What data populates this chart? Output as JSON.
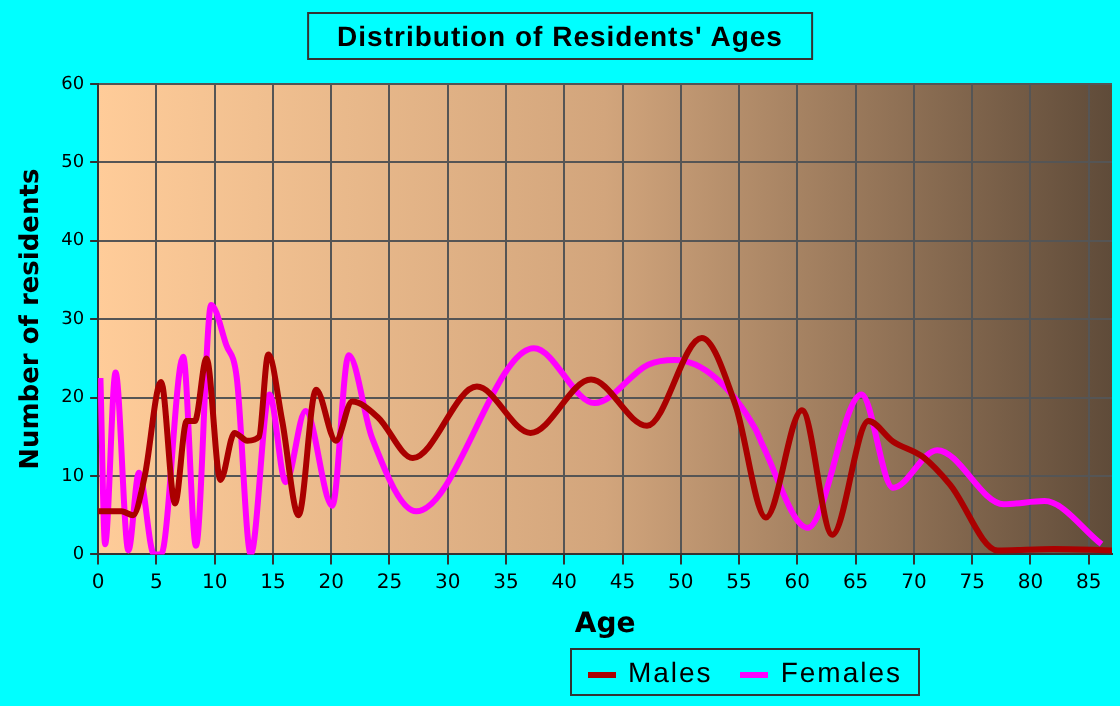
{
  "chart_data": {
    "type": "line",
    "title": "Distribution of Residents' Ages",
    "xlabel": "Age",
    "ylabel": "Number of residents",
    "xlim": [
      0,
      87
    ],
    "xticks": [
      0,
      5,
      10,
      15,
      20,
      25,
      30,
      35,
      40,
      45,
      50,
      55,
      60,
      65,
      70,
      75,
      80,
      85
    ],
    "ylim": [
      0,
      60
    ],
    "yticks": [
      0,
      10,
      20,
      30,
      40,
      50,
      60
    ],
    "grid": true,
    "legend": "bottom right",
    "marker": "none",
    "line_style": "solid",
    "series": [
      {
        "name": "Males",
        "color": "#aa0000",
        "x": [
          0,
          2,
          3,
          4,
          5.4,
          6.6,
          7.6,
          8.3,
          9.3,
          10.5,
          11.7,
          12.8,
          13.8,
          14.6,
          15.8,
          17.2,
          18.7,
          20.4,
          21.8,
          24,
          27,
          32.5,
          37.1,
          42.3,
          47.1,
          51.8,
          54.7,
          57.3,
          60.4,
          63,
          66.1,
          68.2,
          70.8,
          73.1,
          77.2,
          82,
          87
        ],
        "values": [
          5.5,
          5.5,
          5,
          10,
          22,
          6.5,
          17,
          17,
          25,
          9.5,
          15.5,
          14.5,
          15,
          25.5,
          17,
          5,
          21,
          14.5,
          19.5,
          17.5,
          12.3,
          21.4,
          15.5,
          22.3,
          16.4,
          27.6,
          19,
          4.7,
          18.4,
          2.5,
          17,
          14.4,
          12.4,
          8.9,
          0.5,
          0.7,
          0.5
        ]
      },
      {
        "name": "Females",
        "color": "#ff00ff",
        "x": [
          0.2,
          0.6,
          1.5,
          2.6,
          3.5,
          4.8,
          5.4,
          7.3,
          8.4,
          9.7,
          11,
          11.9,
          13.1,
          14.7,
          16.1,
          17.8,
          20.1,
          21.5,
          23.5,
          27.3,
          37.4,
          42.6,
          47.2,
          49.5,
          53,
          56.4,
          57,
          60.9,
          65.5,
          68.2,
          72,
          77.7,
          81.2,
          86.1
        ],
        "values": [
          22.5,
          1.3,
          23.2,
          0.5,
          10.4,
          0,
          0,
          25.2,
          1.1,
          31.8,
          26.7,
          22.5,
          0,
          20.4,
          9.2,
          18.3,
          6.2,
          25.4,
          14.9,
          5.5,
          26.3,
          19.3,
          24.2,
          24.8,
          22.5,
          16,
          14,
          3.4,
          20.4,
          8.5,
          13.3,
          6.4,
          6.8,
          1.3
        ]
      }
    ]
  }
}
